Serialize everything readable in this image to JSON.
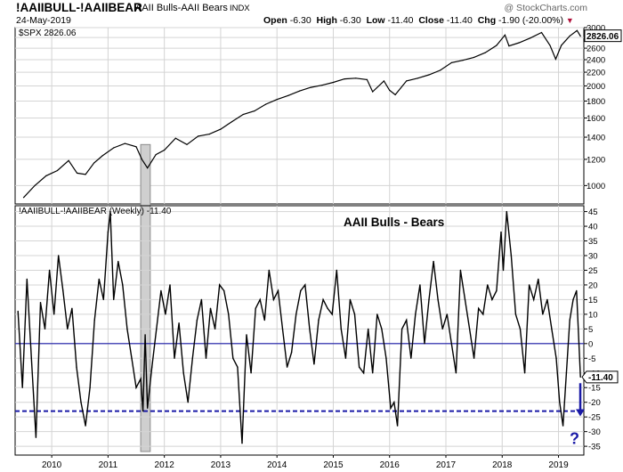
{
  "header": {
    "symbol": "!AAIIBULL-!AAIIBEAR",
    "name": "AAII Bulls-AAII Bears",
    "exchange": "INDX",
    "date": "24-May-2019",
    "watermark": "@ StockCharts.com",
    "open_label": "Open",
    "open": "-6.30",
    "high_label": "High",
    "high": "-6.30",
    "low_label": "Low",
    "low": "-11.40",
    "close_label": "Close",
    "close": "-11.40",
    "chg_label": "Chg",
    "chg": "-1.90 (-20.00%)",
    "chg_marker": "▼"
  },
  "chart_data": [
    {
      "type": "line",
      "legend": "$SPX 2826.06",
      "last_value_label": "2826.06",
      "y_scale": "log",
      "ylim": [
        880,
        3000
      ],
      "y_ticks": [
        1000,
        1200,
        1400,
        1600,
        1800,
        2000,
        2200,
        2400,
        2600,
        2800,
        3000
      ],
      "series": [
        {
          "name": "$SPX",
          "x": [
            2009.5,
            2009.7,
            2009.9,
            2010.1,
            2010.3,
            2010.45,
            2010.6,
            2010.75,
            2010.9,
            2011.1,
            2011.3,
            2011.5,
            2011.6,
            2011.7,
            2011.85,
            2012.0,
            2012.2,
            2012.4,
            2012.6,
            2012.8,
            2013.0,
            2013.2,
            2013.4,
            2013.6,
            2013.8,
            2014.0,
            2014.2,
            2014.4,
            2014.6,
            2014.8,
            2015.0,
            2015.2,
            2015.4,
            2015.6,
            2015.7,
            2015.9,
            2016.0,
            2016.1,
            2016.3,
            2016.5,
            2016.7,
            2016.9,
            2017.1,
            2017.3,
            2017.5,
            2017.7,
            2017.9,
            2018.05,
            2018.12,
            2018.3,
            2018.5,
            2018.7,
            2018.85,
            2018.95,
            2019.05,
            2019.2,
            2019.33,
            2019.39
          ],
          "y": [
            920,
            1000,
            1070,
            1110,
            1190,
            1090,
            1080,
            1170,
            1230,
            1300,
            1340,
            1310,
            1200,
            1130,
            1240,
            1280,
            1390,
            1330,
            1410,
            1430,
            1480,
            1560,
            1640,
            1680,
            1760,
            1820,
            1870,
            1930,
            1980,
            2010,
            2050,
            2100,
            2110,
            2090,
            1920,
            2070,
            1940,
            1880,
            2070,
            2110,
            2160,
            2230,
            2350,
            2390,
            2440,
            2520,
            2650,
            2850,
            2640,
            2700,
            2790,
            2900,
            2650,
            2410,
            2650,
            2830,
            2940,
            2826
          ]
        }
      ]
    },
    {
      "type": "line",
      "title": "AAII Bulls - Bears",
      "legend": "!AAIIBULL-!AAIIBEAR (Weekly) -11.40",
      "last_value_label": "-11.40",
      "ylim": [
        -38,
        47
      ],
      "y_ticks": [
        -35,
        -30,
        -25,
        -20,
        -15,
        -10,
        -5,
        0,
        5,
        10,
        15,
        20,
        25,
        30,
        35,
        40,
        45
      ],
      "x_ticks": [
        "2010",
        "2011",
        "2012",
        "2013",
        "2014",
        "2015",
        "2016",
        "2017",
        "2018",
        "2019"
      ],
      "horizontal_lines": [
        {
          "value": 0,
          "style": "solid",
          "color": "#1a1aa6"
        },
        {
          "value": -23,
          "style": "dashed",
          "color": "#1a1aa6"
        }
      ],
      "shaded_region": {
        "x_start": 2011.58,
        "x_end": 2011.75
      },
      "annotation": {
        "text": "?",
        "color": "#1a1aa6"
      },
      "series": [
        {
          "name": "AAII Bulls-Bears",
          "x": [
            2009.4,
            2009.48,
            2009.56,
            2009.64,
            2009.72,
            2009.8,
            2009.88,
            2009.96,
            2010.04,
            2010.12,
            2010.2,
            2010.28,
            2010.36,
            2010.44,
            2010.52,
            2010.6,
            2010.68,
            2010.76,
            2010.84,
            2010.92,
            2011.0,
            2011.04,
            2011.1,
            2011.18,
            2011.26,
            2011.34,
            2011.42,
            2011.5,
            2011.58,
            2011.62,
            2011.66,
            2011.7,
            2011.78,
            2011.86,
            2011.94,
            2012.02,
            2012.1,
            2012.18,
            2012.26,
            2012.34,
            2012.42,
            2012.5,
            2012.58,
            2012.66,
            2012.74,
            2012.82,
            2012.9,
            2012.98,
            2013.06,
            2013.14,
            2013.22,
            2013.3,
            2013.38,
            2013.46,
            2013.54,
            2013.62,
            2013.7,
            2013.78,
            2013.86,
            2013.94,
            2014.02,
            2014.1,
            2014.18,
            2014.26,
            2014.34,
            2014.42,
            2014.5,
            2014.58,
            2014.66,
            2014.74,
            2014.82,
            2014.9,
            2014.98,
            2015.06,
            2015.14,
            2015.22,
            2015.3,
            2015.38,
            2015.46,
            2015.54,
            2015.62,
            2015.7,
            2015.78,
            2015.86,
            2015.94,
            2016.02,
            2016.08,
            2016.14,
            2016.22,
            2016.3,
            2016.38,
            2016.46,
            2016.54,
            2016.62,
            2016.7,
            2016.78,
            2016.86,
            2016.94,
            2017.02,
            2017.1,
            2017.18,
            2017.26,
            2017.34,
            2017.42,
            2017.5,
            2017.58,
            2017.66,
            2017.74,
            2017.82,
            2017.9,
            2017.98,
            2018.02,
            2018.08,
            2018.16,
            2018.24,
            2018.32,
            2018.4,
            2018.48,
            2018.56,
            2018.64,
            2018.72,
            2018.8,
            2018.88,
            2018.96,
            2019.02,
            2019.08,
            2019.14,
            2019.2,
            2019.26,
            2019.32,
            2019.39
          ],
          "y": [
            11,
            -15,
            22,
            -5,
            -32,
            14,
            5,
            25,
            10,
            30,
            18,
            5,
            12,
            -8,
            -20,
            -28,
            -15,
            8,
            22,
            15,
            38,
            45,
            15,
            28,
            20,
            5,
            -5,
            -15,
            -12,
            -23,
            3,
            -22,
            -8,
            5,
            18,
            10,
            20,
            -5,
            7,
            -10,
            -20,
            -5,
            8,
            15,
            -5,
            12,
            5,
            20,
            18,
            10,
            -5,
            -8,
            -34,
            3,
            -10,
            12,
            15,
            8,
            25,
            15,
            18,
            5,
            -8,
            -3,
            10,
            18,
            20,
            5,
            -7,
            8,
            15,
            12,
            10,
            25,
            5,
            -5,
            15,
            10,
            -8,
            -10,
            5,
            -10,
            10,
            5,
            -5,
            -22,
            -20,
            -28,
            5,
            8,
            -5,
            10,
            20,
            0,
            15,
            28,
            15,
            5,
            10,
            0,
            -10,
            25,
            15,
            5,
            -5,
            12,
            10,
            20,
            15,
            18,
            38,
            25,
            45,
            30,
            10,
            5,
            -10,
            20,
            15,
            22,
            10,
            15,
            5,
            -5,
            -20,
            -28,
            -10,
            8,
            15,
            18,
            -11.4
          ]
        }
      ]
    }
  ]
}
